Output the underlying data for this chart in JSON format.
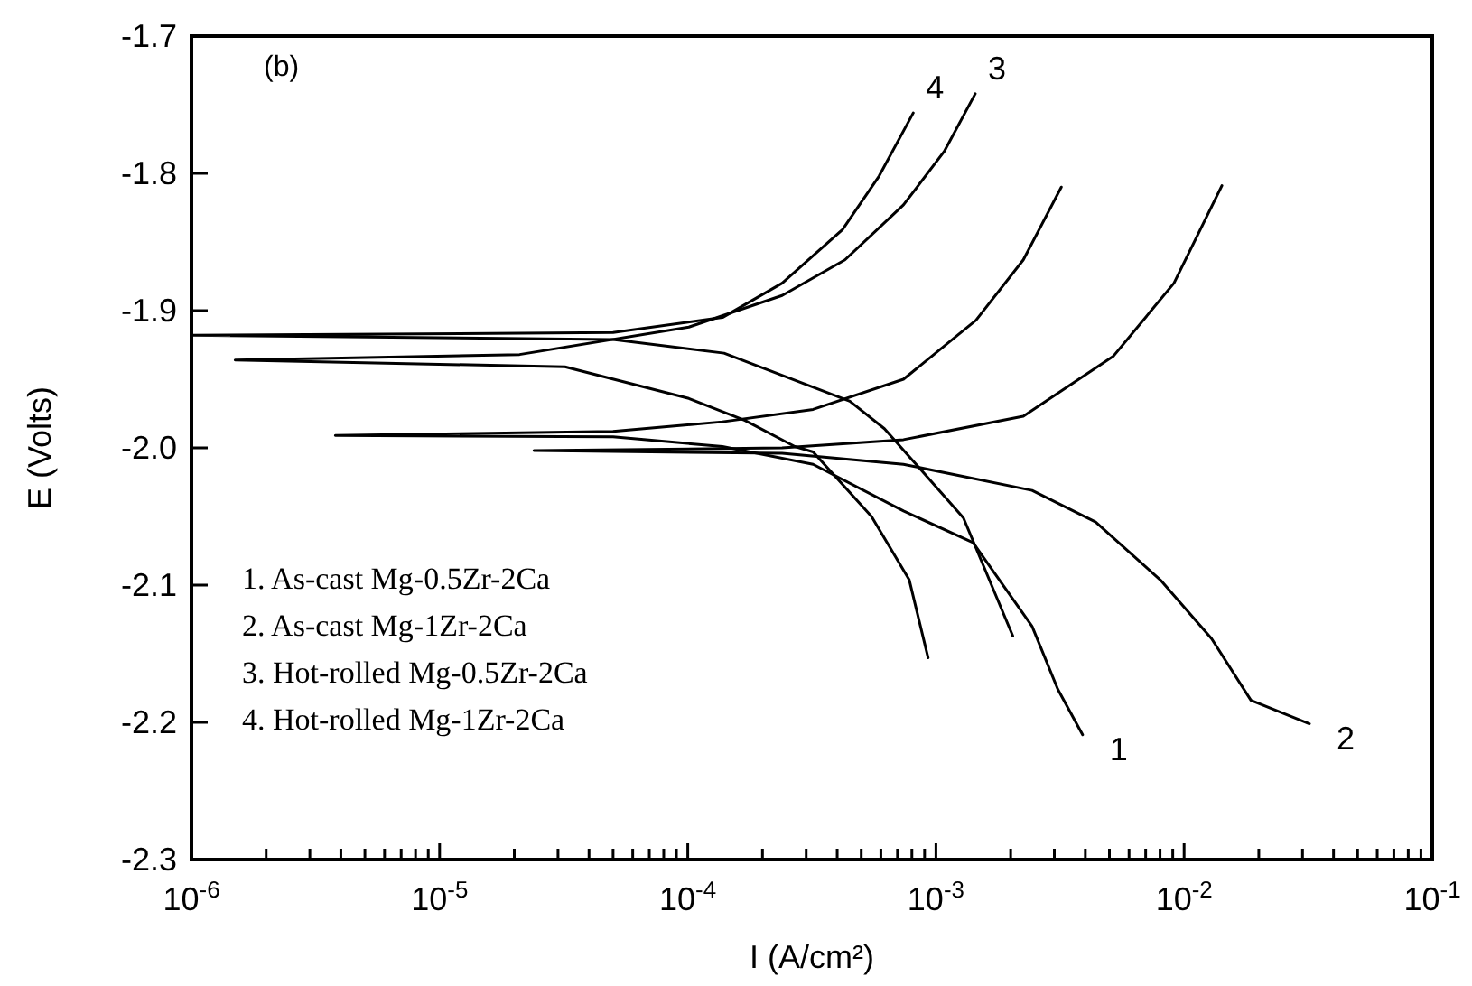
{
  "chart_data": {
    "type": "line",
    "xlabel": "I (A/cm²)",
    "ylabel": "E (Volts)",
    "log": "x",
    "grid": false,
    "marker": "none",
    "line_style": "solid",
    "xlim": [
      1e-06,
      0.1
    ],
    "ylim": [
      -2.3,
      -1.7
    ],
    "xticks": [
      {
        "value": 1e-06,
        "label": "10$^{-6}$"
      },
      {
        "value": 2e-06,
        "label": null
      },
      {
        "value": 3e-06,
        "label": null
      },
      {
        "value": 4e-06,
        "label": null
      },
      {
        "value": 5e-06,
        "label": null
      },
      {
        "value": 6e-06,
        "label": null
      },
      {
        "value": 7e-06,
        "label": null
      },
      {
        "value": 8e-06,
        "label": null
      },
      {
        "value": 9e-06,
        "label": null
      },
      {
        "value": 1e-05,
        "label": "10$^{-5}$"
      },
      {
        "value": 2e-05,
        "label": null
      },
      {
        "value": 3e-05,
        "label": null
      },
      {
        "value": 4e-05,
        "label": null
      },
      {
        "value": 5e-05,
        "label": null
      },
      {
        "value": 6e-05,
        "label": null
      },
      {
        "value": 7e-05,
        "label": null
      },
      {
        "value": 8e-05,
        "label": null
      },
      {
        "value": 9e-05,
        "label": null
      },
      {
        "value": 0.0001,
        "label": "10$^{-4}$"
      },
      {
        "value": 0.0002,
        "label": null
      },
      {
        "value": 0.0003,
        "label": null
      },
      {
        "value": 0.0004,
        "label": null
      },
      {
        "value": 0.0005,
        "label": null
      },
      {
        "value": 0.0006,
        "label": null
      },
      {
        "value": 0.0007,
        "label": null
      },
      {
        "value": 0.0008,
        "label": null
      },
      {
        "value": 0.0009,
        "label": null
      },
      {
        "value": 0.001,
        "label": "10$^{-3}$"
      },
      {
        "value": 0.002,
        "label": null
      },
      {
        "value": 0.003,
        "label": null
      },
      {
        "value": 0.004,
        "label": null
      },
      {
        "value": 0.005,
        "label": null
      },
      {
        "value": 0.006,
        "label": null
      },
      {
        "value": 0.007,
        "label": null
      },
      {
        "value": 0.008,
        "label": null
      },
      {
        "value": 0.009,
        "label": null
      },
      {
        "value": 0.01,
        "label": "10$^{-2}$"
      },
      {
        "value": 0.02,
        "label": null
      },
      {
        "value": 0.03,
        "label": null
      },
      {
        "value": 0.04,
        "label": null
      },
      {
        "value": 0.05,
        "label": null
      },
      {
        "value": 0.06,
        "label": null
      },
      {
        "value": 0.07,
        "label": null
      },
      {
        "value": 0.08,
        "label": null
      },
      {
        "value": 0.09,
        "label": null
      },
      {
        "value": 0.1,
        "label": "10$^{-1}$"
      }
    ],
    "yticks": [
      {
        "value": -2.3,
        "label": "-2.3"
      },
      {
        "value": -2.2,
        "label": "-2.2"
      },
      {
        "value": -2.1,
        "label": "-2.1"
      },
      {
        "value": -2.0,
        "label": "-2.0"
      },
      {
        "value": -1.9,
        "label": "-1.9"
      },
      {
        "value": -1.8,
        "label": "-1.8"
      },
      {
        "value": -1.7,
        "label": "-1.7"
      }
    ],
    "series": [
      {
        "color": "#000000",
        "x": [
          0.0039,
          0.0031,
          0.00244,
          0.00141,
          0.00074,
          0.00032,
          0.000138,
          5e-05,
          3.8e-06,
          5e-05,
          0.000138,
          0.00032,
          0.00074,
          0.00145,
          0.00225,
          0.0032
        ],
        "values": [
          -2.209,
          -2.176,
          -2.13,
          -2.069,
          -2.046,
          -2.012,
          -1.999,
          -1.992,
          -1.991,
          -1.988,
          -1.981,
          -1.972,
          -1.95,
          -1.907,
          -1.863,
          -1.81
        ]
      },
      {
        "color": "#000000",
        "x": [
          0.032,
          0.0186,
          0.0129,
          0.0081,
          0.0044,
          0.00244,
          0.00074,
          0.00024,
          2.4e-05,
          0.00024,
          0.00074,
          0.00225,
          0.0052,
          0.0091,
          0.0142
        ],
        "values": [
          -2.201,
          -2.184,
          -2.139,
          -2.097,
          -2.054,
          -2.031,
          -2.012,
          -2.004,
          -2.002,
          -2.0,
          -1.994,
          -1.977,
          -1.933,
          -1.88,
          -1.809
        ]
      },
      {
        "color": "#000000",
        "x": [
          0.00093,
          0.00078,
          0.00055,
          0.00032,
          0.00027,
          0.00017,
          0.000101,
          3.2e-05,
          1.5e-06,
          2.1e-05,
          0.000101,
          0.00024,
          0.00043,
          0.00074,
          0.00108,
          0.00144
        ],
        "values": [
          -2.153,
          -2.096,
          -2.05,
          -2.003,
          -1.999,
          -1.98,
          -1.964,
          -1.941,
          -1.936,
          -1.932,
          -1.912,
          -1.889,
          -1.863,
          -1.823,
          -1.784,
          -1.742
        ]
      },
      {
        "color": "#000000",
        "x": [
          0.00204,
          0.00129,
          0.00087,
          0.00062,
          0.00045,
          0.00014,
          5e-05,
          1e-06,
          5e-05,
          0.000138,
          0.00024,
          0.00042,
          0.00059,
          0.00081
        ],
        "values": [
          -2.137,
          -2.051,
          -2.016,
          -1.986,
          -1.966,
          -1.931,
          -1.921,
          -1.918,
          -1.916,
          -1.905,
          -1.88,
          -1.841,
          -1.802,
          -1.756
        ]
      }
    ],
    "annotations": [
      "(b)",
      "1. As-cast Mg-0.5Zr-2Ca",
      "2. As-cast Mg-1Zr-2Ca",
      "3. Hot-rolled Mg-0.5Zr-2Ca",
      "4. Hot-rolled Mg-1Zr-2Ca",
      {
        "text": "1",
        "x": 0.0039,
        "y": -2.209
      },
      {
        "text": "2",
        "x": 0.032,
        "y": -2.201
      },
      {
        "text": "3",
        "x": 0.00144,
        "y": -1.742
      },
      {
        "text": "4",
        "x": 0.00081,
        "y": -1.756
      }
    ]
  }
}
